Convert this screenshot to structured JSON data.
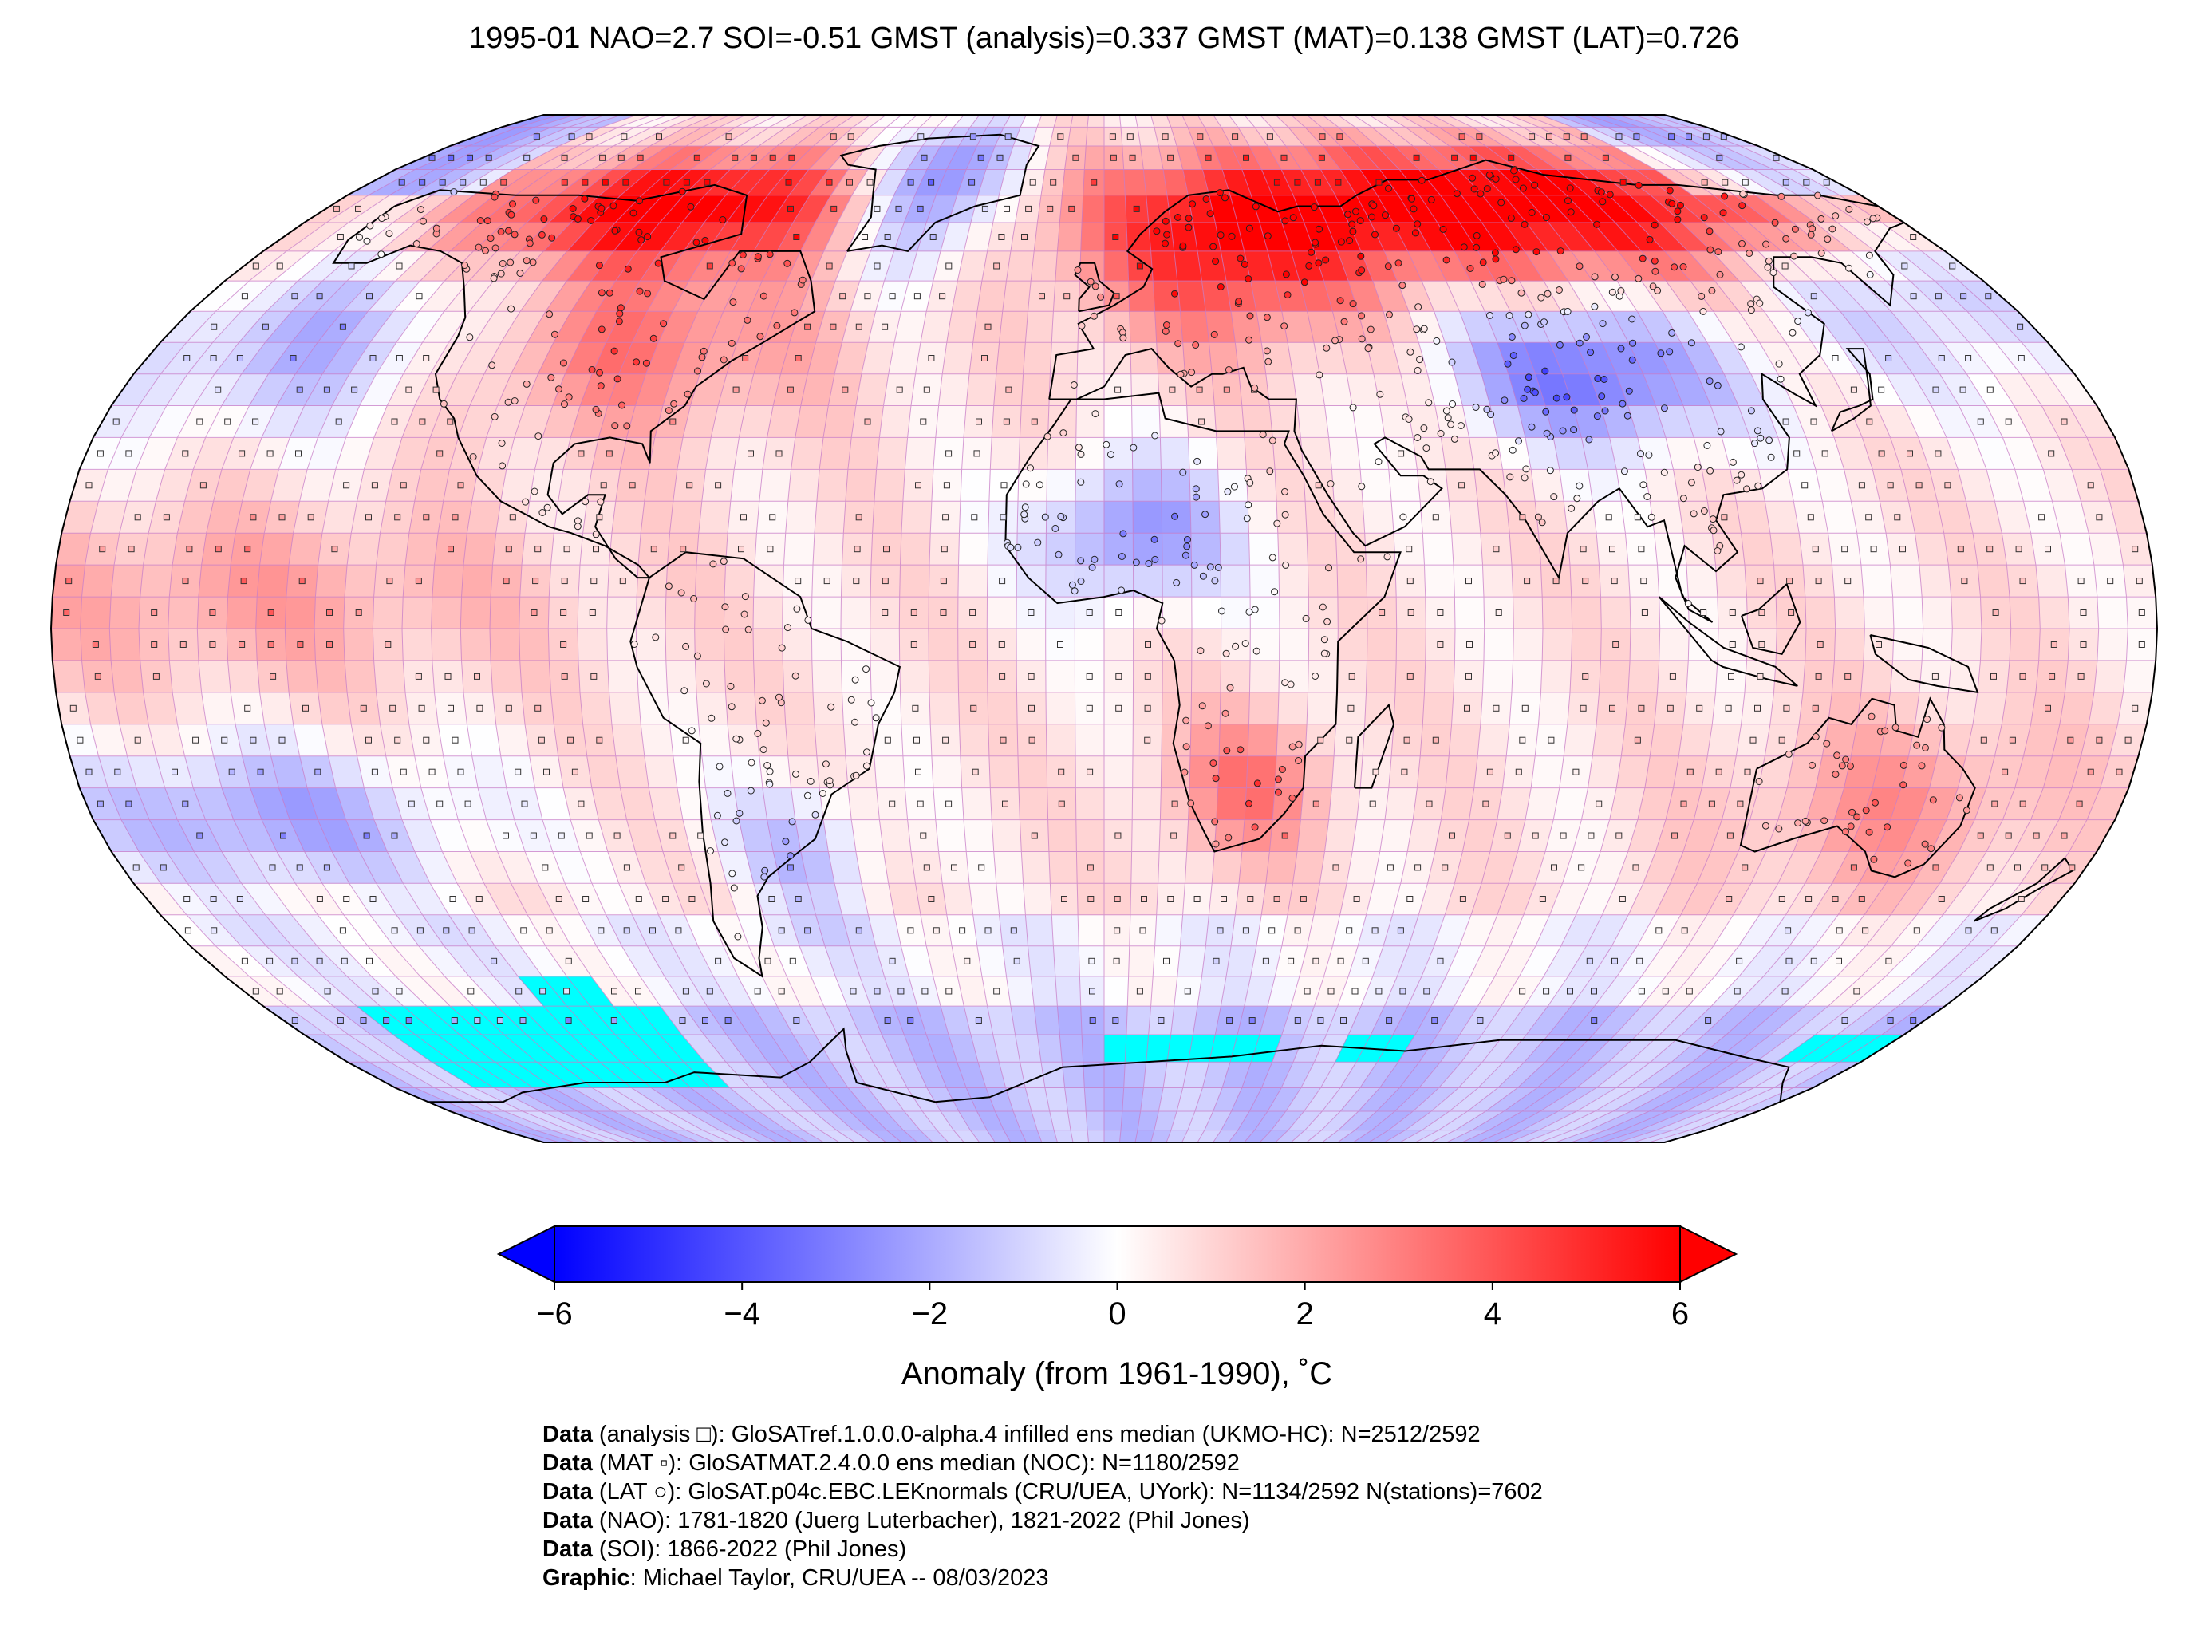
{
  "title": "1995-01 NAO=2.7 SOI=-0.51 GMST (analysis)=0.337 GMST (MAT)=0.138 GMST (LAT)=0.726",
  "map": {
    "projection": "Robinson",
    "grid_resolution_deg": 5,
    "colormap": "bwr",
    "colors": {
      "cold": "#0000ff",
      "neutral": "#ffffff",
      "warm": "#ff0000",
      "sea_ice": "#00ffff",
      "grid_line": "#c87dc8",
      "coastline": "#000000"
    },
    "anomaly_regions": [
      {
        "name": "North America north",
        "anomaly": 5
      },
      {
        "name": "North America",
        "anomaly": 3
      },
      {
        "name": "Greenland",
        "anomaly": -3
      },
      {
        "name": "Eurasia north",
        "anomaly": 5.5
      },
      {
        "name": "Europe",
        "anomaly": 2
      },
      {
        "name": "Central Asia",
        "anomaly": -2.5
      },
      {
        "name": "North Africa",
        "anomaly": -2
      },
      {
        "name": "Southern Africa",
        "anomaly": 2
      },
      {
        "name": "Australia",
        "anomaly": 1.5
      },
      {
        "name": "Southern Ocean",
        "anomaly": -1.5
      },
      {
        "name": "North Pacific",
        "anomaly": -1.5
      },
      {
        "name": "Tropics",
        "anomaly": 1
      }
    ]
  },
  "colorbar": {
    "ticks": [
      "−6",
      "−4",
      "−2",
      "0",
      "2",
      "4",
      "6"
    ],
    "vmin": -6,
    "vmax": 6,
    "extend": "both",
    "label": "Anomaly (from 1961-1990), ˚C"
  },
  "credits": [
    {
      "key": "Data",
      "text": " (analysis □): GloSATref.1.0.0.0-alpha.4 infilled ens median (UKMO-HC): N=2512/2592"
    },
    {
      "key": "Data",
      "text": " (MAT ▫): GloSATMAT.2.4.0.0 ens median (NOC): N=1180/2592"
    },
    {
      "key": "Data",
      "text": " (LAT ○): GloSAT.p04c.EBC.LEKnormals (CRU/UEA, UYork): N=1134/2592 N(stations)=7602"
    },
    {
      "key": "Data",
      "text": " (NAO): 1781-1820 (Juerg Luterbacher), 1821-2022 (Phil Jones)"
    },
    {
      "key": "Data",
      "text": " (SOI): 1866-2022 (Phil Jones)"
    },
    {
      "key": "Graphic",
      "text": ": Michael Taylor, CRU/UEA -- 08/03/2023"
    }
  ]
}
